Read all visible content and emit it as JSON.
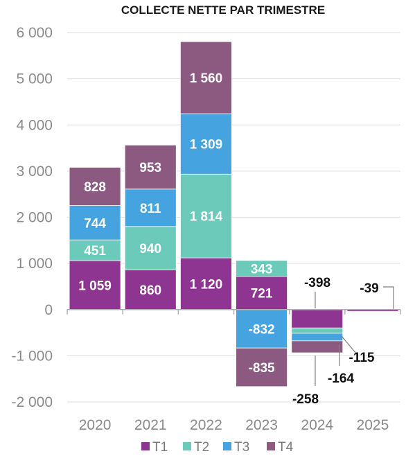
{
  "chart_data": {
    "type": "bar",
    "stacked": true,
    "title": "COLLECTE NETTE PAR TRIMESTRE",
    "xlabel": "",
    "ylabel": "",
    "categories": [
      "2020",
      "2021",
      "2022",
      "2023",
      "2024",
      "2025"
    ],
    "ylim": [
      -2000,
      6000
    ],
    "yticks": [
      6000,
      5000,
      4000,
      3000,
      2000,
      1000,
      0,
      -1000,
      -2000
    ],
    "ytick_labels": [
      "6 000",
      "5 000",
      "4 000",
      "3 000",
      "2 000",
      "1 000",
      "0",
      "-1 000",
      "-2 000"
    ],
    "grid": true,
    "legend_position": "bottom",
    "series": [
      {
        "name": "T1",
        "color": "#8e3592",
        "values": [
          1059,
          860,
          1120,
          721,
          -398,
          -39
        ],
        "labels": [
          "1 059",
          "860",
          "1 120",
          "721",
          "-398",
          "-39"
        ]
      },
      {
        "name": "T2",
        "color": "#6ccabb",
        "values": [
          451,
          940,
          1814,
          343,
          -115,
          null
        ],
        "labels": [
          "451",
          "940",
          "1 814",
          "343",
          "-115",
          ""
        ]
      },
      {
        "name": "T3",
        "color": "#45a3e0",
        "values": [
          744,
          811,
          1309,
          -832,
          -164,
          null
        ],
        "labels": [
          "744",
          "811",
          "1 309",
          "-832",
          "-164",
          ""
        ]
      },
      {
        "name": "T4",
        "color": "#8c5a80",
        "values": [
          828,
          953,
          1560,
          -835,
          -258,
          null
        ],
        "labels": [
          "828",
          "953",
          "1 560",
          "-835",
          "-258",
          ""
        ]
      }
    ]
  }
}
